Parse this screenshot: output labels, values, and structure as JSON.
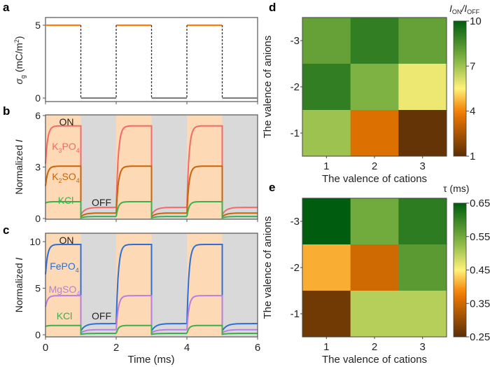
{
  "chart_data": [
    {
      "panel": "a",
      "type": "line",
      "ylabel": "σg (mC/m²)",
      "yticks": [
        "0",
        "5"
      ],
      "xlim": [
        0,
        6
      ],
      "ylim": [
        0,
        5.3
      ],
      "on_color": "#ff7f0e",
      "off_color": "#808080",
      "segments": [
        {
          "x0": 0,
          "x1": 1,
          "y": 5
        },
        {
          "x0": 1,
          "x1": 2,
          "y": 0
        },
        {
          "x0": 2,
          "x1": 3,
          "y": 5
        },
        {
          "x0": 3,
          "x1": 4,
          "y": 0
        },
        {
          "x0": 4,
          "x1": 5,
          "y": 5
        },
        {
          "x0": 5,
          "x1": 6,
          "y": 0
        }
      ]
    },
    {
      "panel": "b",
      "type": "line",
      "ylabel": "Normalized I",
      "yticks": [
        "0",
        "3",
        "6"
      ],
      "xlim": [
        0,
        6
      ],
      "ylim": [
        0,
        6
      ],
      "on_label": "ON",
      "off_label": "OFF",
      "on_bg": "#fdd9b5",
      "off_bg": "#d9d9d9",
      "series": [
        {
          "name": "K3PO4",
          "label_main": "K",
          "sub1": "3",
          "mid": "PO",
          "sub2": "4",
          "color": "#f26a6a",
          "on": 5.4,
          "off": 0.65,
          "start": 3.2
        },
        {
          "name": "K2SO4",
          "label_main": "K",
          "sub1": "2",
          "mid": "SO",
          "sub2": "4",
          "color": "#c8640a",
          "on": 3.05,
          "off": 0.32,
          "start": 1.9
        },
        {
          "name": "KCl",
          "label_main": "KCl",
          "color": "#3cb04a",
          "on": 0.98,
          "off": 0.12,
          "start": 0.9
        }
      ]
    },
    {
      "panel": "c",
      "type": "line",
      "ylabel": "Normalized I",
      "xlabel": "Time (ms)",
      "yticks": [
        "0",
        "5",
        "10"
      ],
      "xticks": [
        "0",
        "2",
        "4",
        "6"
      ],
      "xlim": [
        0,
        6
      ],
      "ylim": [
        -0.2,
        11
      ],
      "on_label": "ON",
      "off_label": "OFF",
      "on_bg": "#fdd9b5",
      "off_bg": "#d9d9d9",
      "series": [
        {
          "name": "FePO4",
          "label_main": "FePO",
          "sub2": "4",
          "color": "#2d6fd6",
          "on": 9.7,
          "off": 1.2,
          "start": 6.5
        },
        {
          "name": "MgSO4",
          "label_main": "MgSO",
          "sub2": "4",
          "color": "#b87ee0",
          "on": 4.2,
          "off": 0.55,
          "start": 3.0
        },
        {
          "name": "KCl",
          "label_main": "KCl",
          "color": "#3cb04a",
          "on": 1.0,
          "off": 0.15,
          "start": 0.9
        }
      ]
    },
    {
      "panel": "d",
      "type": "heatmap",
      "xlabel": "The valence of cations",
      "ylabel": "The valence of anions",
      "x": [
        "1",
        "2",
        "3"
      ],
      "y": [
        "-3",
        "-2",
        "-1"
      ],
      "values": [
        [
          8.0,
          9.0,
          8.0
        ],
        [
          9.0,
          7.5,
          5.8
        ],
        [
          7.0,
          3.5,
          1.2
        ]
      ],
      "colorbar_title": "I_ON/I_OFF",
      "colorbar_ticks": [
        "1",
        "4",
        "7",
        "10"
      ],
      "vmin": 1,
      "vmax": 10
    },
    {
      "panel": "e",
      "type": "heatmap",
      "xlabel": "The valence of cations",
      "ylabel": "The valence of anions",
      "x": [
        "1",
        "2",
        "3"
      ],
      "y": [
        "-3",
        "-2",
        "-1"
      ],
      "values": [
        [
          0.65,
          0.55,
          0.61
        ],
        [
          0.41,
          0.35,
          0.57
        ],
        [
          0.27,
          0.5,
          0.5
        ]
      ],
      "colorbar_title": "τ (ms)",
      "colorbar_ticks": [
        "0.25",
        "0.35",
        "0.45",
        "0.55",
        "0.65"
      ],
      "vmin": 0.25,
      "vmax": 0.65
    }
  ],
  "panel_labels": {
    "a": "a",
    "b": "b",
    "c": "c",
    "d": "d",
    "e": "e"
  },
  "colormap_stops": [
    "#5a2e06",
    "#f57c00",
    "#fff27a",
    "#7fb342",
    "#005d0f"
  ]
}
